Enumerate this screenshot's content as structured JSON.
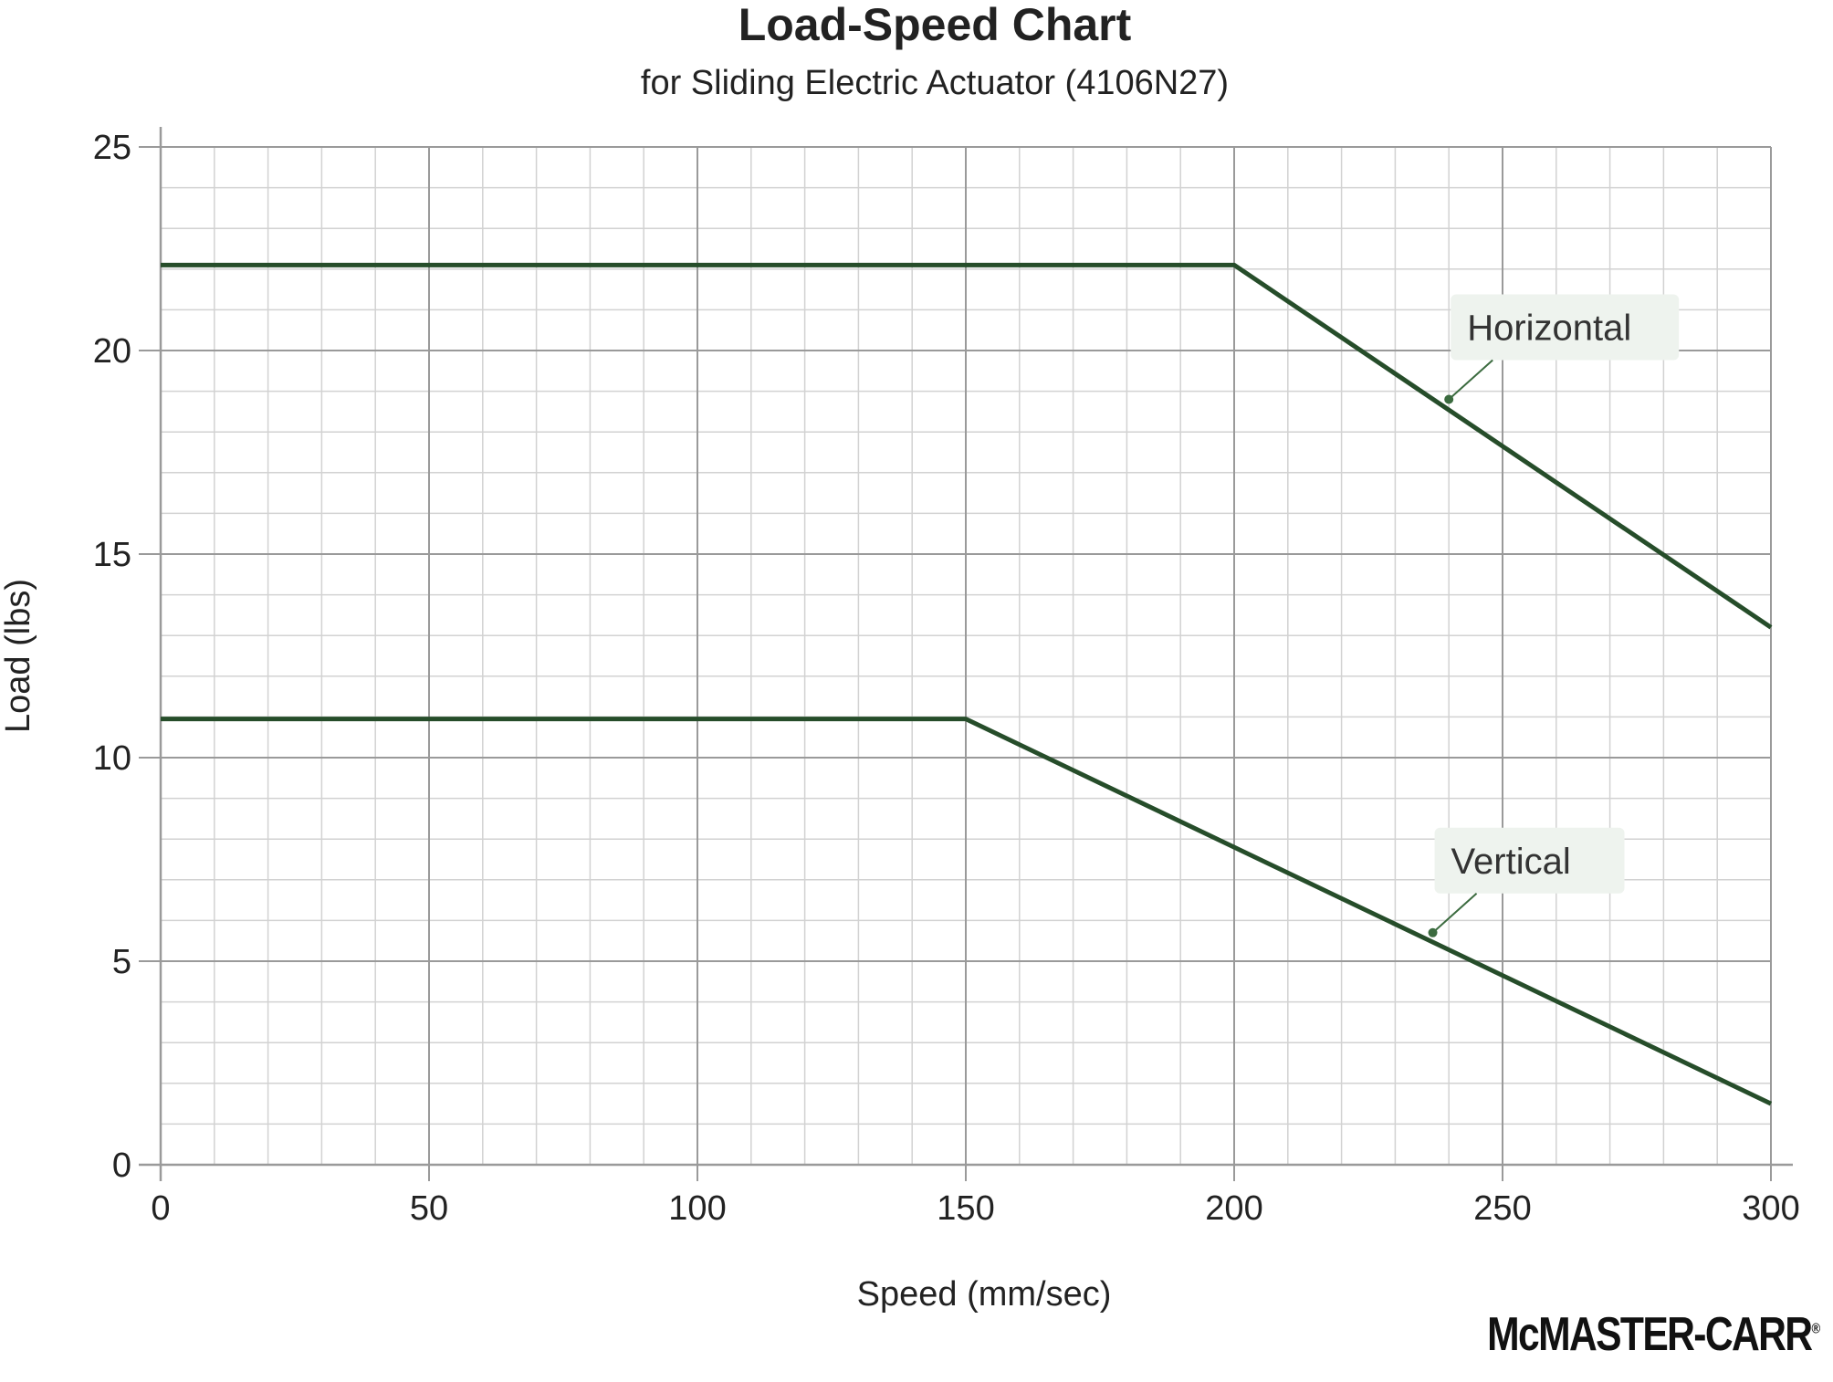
{
  "brand": "McMASTER-CARR",
  "colors": {
    "line": "#264d2a",
    "grid_major": "#9a9a9a",
    "grid_minor": "#d2d2d2",
    "callout_bg": "#eef3ee",
    "callout_dot": "#3b6b3f"
  },
  "chart_data": {
    "type": "line",
    "title": "Load-Speed Chart",
    "subtitle": "for Sliding Electric Actuator (4106N27)",
    "xlabel": "Speed (mm/sec)",
    "ylabel": "Load (lbs)",
    "xlim": [
      0,
      300
    ],
    "ylim": [
      0,
      25
    ],
    "xticks": [
      0,
      50,
      100,
      150,
      200,
      250,
      300
    ],
    "yticks": [
      0,
      5,
      10,
      15,
      20,
      25
    ],
    "x_minor_step": 10,
    "y_minor_step": 1,
    "grid": true,
    "series": [
      {
        "name": "Horizontal",
        "x": [
          0,
          200,
          300
        ],
        "y": [
          22.1,
          22.1,
          13.2
        ],
        "label_at": [
          240,
          18.8
        ]
      },
      {
        "name": "Vertical",
        "x": [
          0,
          150,
          300
        ],
        "y": [
          10.95,
          10.95,
          1.5
        ],
        "label_at": [
          237,
          5.7
        ]
      }
    ]
  }
}
